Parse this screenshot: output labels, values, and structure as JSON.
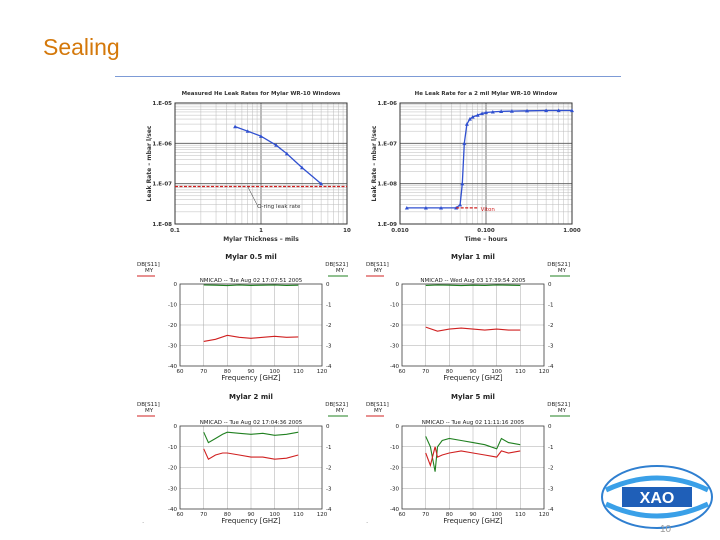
{
  "slide": {
    "title": "Sealing",
    "page_number": "10",
    "logo_text": "XAO",
    "colors": {
      "title": "#d4780a",
      "rule": "#7d9bd6",
      "blue": "#3050d0",
      "red": "#d02020",
      "green": "#208020"
    }
  },
  "chart_data": [
    {
      "id": "leak-mylar",
      "type": "line",
      "title": "Measured He Leak Rates for Mylar WR-10 Windows",
      "xlabel": "Mylar Thickness  –  mils",
      "ylabel": "Leak Rate  –  mbar l/sec",
      "xscale": "log",
      "yscale": "log",
      "xlim": [
        0.1,
        10
      ],
      "ylim": [
        1e-08,
        1e-05
      ],
      "x_ticks": [
        "0.1",
        "1",
        "10"
      ],
      "y_ticks": [
        "1.E-08",
        "1.E-07",
        "1.E-06",
        "1.E-05"
      ],
      "series": [
        {
          "name": "Measured",
          "color": "#3050d0",
          "x": [
            0.5,
            0.7,
            1.0,
            1.5,
            2.0,
            3.0,
            5.0
          ],
          "y": [
            2.6e-06,
            2e-06,
            1.5e-06,
            9e-07,
            5.5e-07,
            2.5e-07,
            1e-07
          ]
        },
        {
          "name": "O-ring leak rate",
          "color": "#d02020",
          "x": [
            0.1,
            10
          ],
          "y": [
            8.5e-08,
            8.5e-08
          ]
        }
      ],
      "annotations": [
        "O-ring leak rate"
      ]
    },
    {
      "id": "leak-time",
      "type": "line",
      "title": "He Leak Rate for a 2 mil Mylar WR-10 Window",
      "xlabel": "Time – hours",
      "ylabel": "Leak Rate  –  mbar l/sec",
      "xscale": "log",
      "yscale": "log",
      "xlim": [
        0.01,
        1
      ],
      "ylim": [
        1e-09,
        1e-06
      ],
      "x_ticks": [
        "0.010",
        "0.100",
        "1.000"
      ],
      "y_ticks": [
        "1.E-09",
        "1.E-08",
        "1.E-07",
        "1.E-06"
      ],
      "series": [
        {
          "name": "Leak rate",
          "color": "#3050d0",
          "x": [
            0.012,
            0.02,
            0.03,
            0.045,
            0.05,
            0.053,
            0.056,
            0.06,
            0.065,
            0.07,
            0.08,
            0.09,
            0.1,
            0.12,
            0.15,
            0.2,
            0.3,
            0.5,
            0.7,
            1.0
          ],
          "y": [
            2.5e-09,
            2.5e-09,
            2.5e-09,
            2.5e-09,
            3e-09,
            1e-08,
            1e-07,
            3e-07,
            4e-07,
            4.5e-07,
            5e-07,
            5.5e-07,
            5.8e-07,
            6e-07,
            6.2e-07,
            6.3e-07,
            6.4e-07,
            6.5e-07,
            6.5e-07,
            6.5e-07
          ]
        },
        {
          "name": "Viton",
          "color": "#d02020",
          "x": [
            0.045,
            0.08
          ],
          "y": [
            2.5e-09,
            2.5e-09
          ]
        }
      ],
      "annotations": [
        "Viton"
      ]
    },
    {
      "id": "sparam-0p5",
      "type": "line",
      "title": "Mylar 0.5 mil",
      "header": "NMICAD -- Tue Aug 02 17:07:51 2005",
      "left_axis_label": "DB[S11]",
      "left_axis_unit": "MY",
      "right_axis_label": "DB[S21]",
      "right_axis_unit": "MY",
      "xlabel": "Frequency [GHZ]",
      "xlim": [
        60,
        120
      ],
      "ylim": [
        -40,
        0
      ],
      "right_ylim": [
        -4,
        0
      ],
      "x_ticks": [
        "60",
        "70",
        "80",
        "90",
        "100",
        "110",
        "120"
      ],
      "y_ticks": [
        "0",
        "-10",
        "-20",
        "-30",
        "-40"
      ],
      "right_ticks": [
        "0",
        "-1",
        "-2",
        "-3",
        "-4"
      ],
      "series": [
        {
          "name": "S21",
          "color": "#208020",
          "axis": "right",
          "x": [
            70,
            75,
            80,
            85,
            90,
            95,
            100,
            105,
            110
          ],
          "y": [
            -0.05,
            -0.06,
            -0.08,
            -0.05,
            -0.07,
            -0.06,
            -0.05,
            -0.07,
            -0.06
          ]
        },
        {
          "name": "S11",
          "color": "#d02020",
          "axis": "left",
          "x": [
            70,
            75,
            80,
            85,
            90,
            95,
            100,
            105,
            110
          ],
          "y": [
            -28,
            -27,
            -25,
            -26,
            -26.5,
            -26,
            -25.5,
            -26,
            -25.8
          ]
        }
      ]
    },
    {
      "id": "sparam-1",
      "type": "line",
      "title": "Mylar 1 mil",
      "header": "NMICAD -- Wed Aug 03 17:39:54 2005",
      "left_axis_label": "DB[S11]",
      "left_axis_unit": "MY",
      "right_axis_label": "DB[S21]",
      "right_axis_unit": "MY",
      "xlabel": "Frequency [GHZ]",
      "xlim": [
        60,
        120
      ],
      "ylim": [
        -40,
        0
      ],
      "right_ylim": [
        -4,
        0
      ],
      "x_ticks": [
        "60",
        "70",
        "80",
        "90",
        "100",
        "110",
        "120"
      ],
      "y_ticks": [
        "0",
        "-10",
        "-20",
        "-30",
        "-40"
      ],
      "right_ticks": [
        "0",
        "-1",
        "-2",
        "-3",
        "-4"
      ],
      "series": [
        {
          "name": "S21",
          "color": "#208020",
          "axis": "right",
          "x": [
            70,
            75,
            80,
            85,
            90,
            95,
            100,
            105,
            110
          ],
          "y": [
            -0.07,
            -0.05,
            -0.06,
            -0.08,
            -0.06,
            -0.07,
            -0.05,
            -0.06,
            -0.07
          ]
        },
        {
          "name": "S11",
          "color": "#d02020",
          "axis": "left",
          "x": [
            70,
            75,
            80,
            85,
            90,
            95,
            100,
            105,
            110
          ],
          "y": [
            -21,
            -23,
            -22,
            -21.5,
            -22,
            -22.5,
            -22,
            -22.5,
            -22.5
          ]
        }
      ]
    },
    {
      "id": "sparam-2",
      "type": "line",
      "title": "Mylar 2 mil",
      "header": "NMICAD -- Tue Aug 02 17:04:36 2005",
      "left_axis_label": "DB[S11]",
      "left_axis_unit": "MY",
      "right_axis_label": "DB[S21]",
      "right_axis_unit": "MY",
      "xlabel": "Frequency [GHZ]",
      "xlim": [
        60,
        120
      ],
      "ylim": [
        -40,
        0
      ],
      "right_ylim": [
        -4,
        0
      ],
      "x_ticks": [
        "60",
        "70",
        "80",
        "90",
        "100",
        "110",
        "120"
      ],
      "y_ticks": [
        "0",
        "-10",
        "-20",
        "-30",
        "-40"
      ],
      "right_ticks": [
        "0",
        "-1",
        "-2",
        "-3",
        "-4"
      ],
      "series": [
        {
          "name": "S21",
          "color": "#208020",
          "axis": "right",
          "x": [
            70,
            72,
            75,
            78,
            80,
            85,
            90,
            95,
            100,
            105,
            110
          ],
          "y": [
            -0.3,
            -0.8,
            -0.6,
            -0.4,
            -0.3,
            -0.35,
            -0.4,
            -0.35,
            -0.45,
            -0.4,
            -0.3
          ]
        },
        {
          "name": "S11",
          "color": "#d02020",
          "axis": "left",
          "x": [
            70,
            72,
            75,
            78,
            80,
            85,
            90,
            95,
            100,
            105,
            110
          ],
          "y": [
            -11,
            -16,
            -14,
            -13,
            -13,
            -14,
            -15,
            -15,
            -16,
            -15.5,
            -14
          ]
        }
      ]
    },
    {
      "id": "sparam-5",
      "type": "line",
      "title": "Mylar 5 mil",
      "header": "NMICAD -- Tue Aug 02 11:11:16 2005",
      "left_axis_label": "DB[S11]",
      "left_axis_unit": "MY",
      "right_axis_label": "DB[S21]",
      "right_axis_unit": "MY",
      "xlabel": "Frequency [GHZ]",
      "xlim": [
        60,
        120
      ],
      "ylim": [
        -40,
        0
      ],
      "right_ylim": [
        -4,
        0
      ],
      "x_ticks": [
        "60",
        "70",
        "80",
        "90",
        "100",
        "110",
        "120"
      ],
      "y_ticks": [
        "0",
        "-10",
        "-20",
        "-30",
        "-40"
      ],
      "right_ticks": [
        "0",
        "-1",
        "-2",
        "-3",
        "-4"
      ],
      "series": [
        {
          "name": "S21",
          "color": "#208020",
          "axis": "right",
          "x": [
            70,
            72,
            74,
            75,
            77,
            80,
            85,
            90,
            95,
            100,
            102,
            105,
            110
          ],
          "y": [
            -0.5,
            -1.0,
            -2.2,
            -1.0,
            -0.7,
            -0.6,
            -0.7,
            -0.8,
            -0.9,
            -1.1,
            -0.6,
            -0.8,
            -0.9
          ]
        },
        {
          "name": "S11",
          "color": "#d02020",
          "axis": "left",
          "x": [
            70,
            72,
            74,
            75,
            77,
            80,
            85,
            90,
            95,
            100,
            102,
            105,
            110
          ],
          "y": [
            -13,
            -19,
            -10,
            -15,
            -14,
            -13,
            -12,
            -13,
            -14,
            -15,
            -12,
            -13,
            -12
          ]
        }
      ]
    }
  ]
}
